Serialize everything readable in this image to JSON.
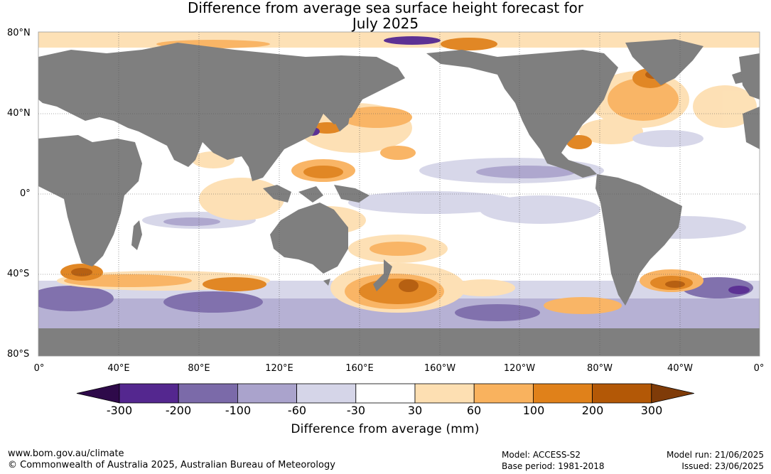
{
  "title_line1": "Difference from average sea surface height forecast for",
  "title_line2": "July 2025",
  "lat_labels": [
    "80°N",
    "40°N",
    "0°",
    "40°S",
    "80°S"
  ],
  "lon_labels": [
    "0°",
    "40°E",
    "80°E",
    "120°E",
    "160°E",
    "160°W",
    "120°W",
    "80°W",
    "40°W",
    "0°"
  ],
  "colorbar": {
    "title": "Difference from average (mm)",
    "tick_labels": [
      "-300",
      "-200",
      "-100",
      "-60",
      "-30",
      "30",
      "60",
      "100",
      "200",
      "300"
    ],
    "colors": [
      "#2e0a4a",
      "#54278f",
      "#7b6aa9",
      "#aaa3cc",
      "#d5d5e8",
      "#ffffff",
      "#fddfb2",
      "#f9b25e",
      "#e0811a",
      "#b35806",
      "#7f3b08"
    ]
  },
  "colors": {
    "land": "#7f7f7f",
    "ocean_neutral": "#ffffff",
    "grid": "#555555"
  },
  "footer": {
    "website": "www.bom.gov.au/climate",
    "copyright": "© Commonwealth of Australia 2025, Australian Bureau of Meteorology",
    "model": "Model: ACCESS-S2",
    "base_period": "Base period: 1981-2018",
    "model_run": "Model run: 21/06/2025",
    "issued": "Issued: 23/06/2025"
  }
}
